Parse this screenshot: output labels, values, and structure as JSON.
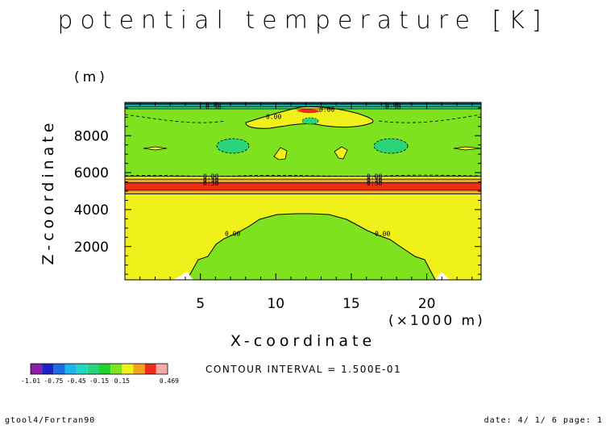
{
  "chart_data": {
    "type": "heatmap",
    "title": "potential temperature [K]",
    "xlabel": "X-coordinate",
    "xunit": "(×1000 m)",
    "ylabel": "Z-coordinate",
    "yunit": "(m)",
    "xlim": [
      0,
      23.6
    ],
    "ylim": [
      200,
      9800
    ],
    "xticks": [
      "5",
      "10",
      "15",
      "20"
    ],
    "yticks": [
      "2000",
      "4000",
      "6000",
      "8000"
    ],
    "contour_interval": "CONTOUR INTERVAL = 1.500E-01",
    "contour_labels": [
      "0.00",
      "0.30"
    ],
    "colorbar": {
      "labels": [
        "-1.01",
        "-0.75",
        "-0.45",
        "-0.15",
        "0.15",
        "0.469"
      ],
      "colors": [
        "#8a1fa8",
        "#2020c8",
        "#1f6be0",
        "#1fb4f0",
        "#20d8c0",
        "#2ad47a",
        "#22d22a",
        "#7ee21e",
        "#f0f01a",
        "#f5a31a",
        "#f02c16",
        "#f7a8a8"
      ]
    },
    "bands": [
      {
        "zmin": 200,
        "zmax": 4850,
        "color": "#f0f01a",
        "value": "0.15"
      },
      {
        "zmin": 4850,
        "zmax": 5050,
        "color": "#f5a31a",
        "value": "0.30"
      },
      {
        "zmin": 5050,
        "zmax": 5450,
        "color": "#f02c16",
        "value": "0.45"
      },
      {
        "zmin": 5450,
        "zmax": 5650,
        "color": "#f5a31a",
        "value": "0.30"
      },
      {
        "zmin": 5650,
        "zmax": 5800,
        "color": "#f0f01a",
        "value": "0.15"
      },
      {
        "zmin": 5800,
        "zmax": 9450,
        "color": "#7ee21e",
        "value": "0.00"
      },
      {
        "zmin": 9450,
        "zmax": 9580,
        "color": "#2ad47a",
        "value": "-0.15"
      },
      {
        "zmin": 9580,
        "zmax": 9680,
        "color": "#20d8c0",
        "value": "-0.30"
      },
      {
        "zmin": 9680,
        "zmax": 9740,
        "color": "#1fb4f0",
        "value": "-0.45"
      },
      {
        "zmin": 9740,
        "zmax": 9800,
        "color": "#1f6be0",
        "value": "-0.60"
      }
    ]
  },
  "footer": {
    "left": "gtool4/Fortran90",
    "right": "date: 4/ 1/ 6 page: 1"
  }
}
